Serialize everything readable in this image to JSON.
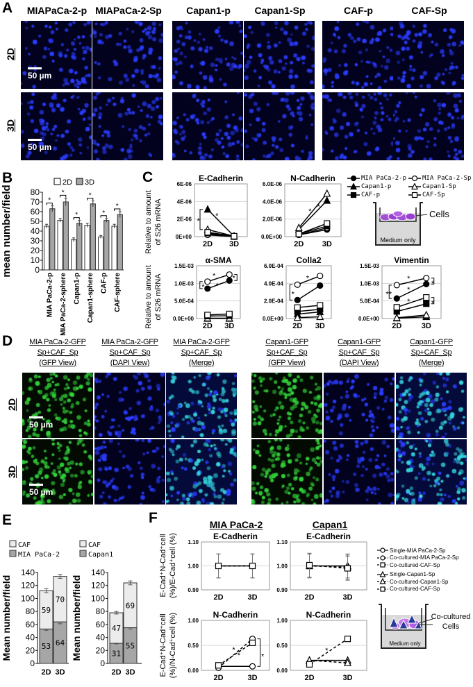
{
  "panels": {
    "A": "A",
    "B": "B",
    "C": "C",
    "D": "D",
    "E": "E",
    "F": "F"
  },
  "colors": {
    "dapi_dot": "#2a3cff",
    "dapi_bg": "#02021e",
    "gfp_dot": "#33d23a",
    "gfp_bg": "#020a02",
    "merge_dot": "#35d7e0",
    "merge_bg": "#040a3a",
    "bar_2d": "#ffffff",
    "bar_3d": "#a6a6a6",
    "stack_bottom": "#a6a6a6",
    "stack_top": "#ececec",
    "cell_purple": "#9b3fd0",
    "cell_blue": "#2a3a9a"
  },
  "panel_a": {
    "headers": [
      "MIAPaCa-2-p",
      "MIAPaCa-2-Sp",
      "Capan1-p",
      "Capan1-Sp",
      "CAF-p",
      "CAF-Sp"
    ],
    "rows": [
      "2D",
      "3D"
    ],
    "scale_bar": "50 µm",
    "stain": "dapi"
  },
  "panel_d": {
    "headers": [
      [
        "MIA PaCa-2-GFP",
        "Sp+CAF_Sp",
        "(GFP View)"
      ],
      [
        "MIA PaCa-2-GFP",
        "Sp+CAF_Sp",
        "(DAPI View)"
      ],
      [
        "MIA PaCa-2-GFP",
        "Sp+CAF_Sp",
        "(Merge)"
      ],
      [
        "Capan1-GFP",
        "Sp+CAF_Sp",
        "(GFP View)"
      ],
      [
        "Capan1-GFP",
        "Sp+CAF_Sp",
        "(DAPI View)"
      ],
      [
        "Capan1-GFP",
        "Sp+CAF_Sp",
        "(Merge)"
      ]
    ],
    "stains": [
      "gfp",
      "dapi",
      "merge",
      "gfp",
      "dapi",
      "merge"
    ],
    "rows": [
      "2D",
      "3D"
    ],
    "scale_bar": "50 µm"
  },
  "c_ylabel": [
    "Relative to amount",
    "of S26 mRNA"
  ],
  "c_legend": [
    {
      "label": "MIA PaCa-2-p",
      "marker": "circle",
      "filled": true
    },
    {
      "label": "MIA PaCa-2-Sp",
      "marker": "circle",
      "filled": false
    },
    {
      "label": "Capan1-p",
      "marker": "triangle",
      "filled": true
    },
    {
      "label": "Capan1-Sp",
      "marker": "triangle",
      "filled": false
    },
    {
      "label": "CAF-p",
      "marker": "square",
      "filled": true
    },
    {
      "label": "CAF-Sp",
      "marker": "square",
      "filled": false
    }
  ],
  "c_diagram": {
    "cells": "Cells",
    "medium": "Medium only"
  },
  "f_titles": [
    "MIA PaCa-2",
    "Capan1"
  ],
  "f_ylabels": [
    [
      "E-Cad⁺N-Cad⁺cell",
      "(%)/E-Cad⁺cell (%)"
    ],
    [
      "E-Cad⁺N-Cad⁺cell",
      "(%)/N-Cad⁺cell (%)"
    ]
  ],
  "f_legend": [
    {
      "label": "Single-MIA PaCa-2-Sp",
      "marker": "circle",
      "dashed": false
    },
    {
      "label": "Co-cultured-MIA PaCa-2-Sp",
      "marker": "circle",
      "dashed": true
    },
    {
      "label": "Co-cultured-CAF-Sp",
      "marker": "square",
      "dashed": true
    },
    {
      "label": "Single-Capan1-Sp",
      "marker": "triangle",
      "dashed": false
    },
    {
      "label": "Co-cultured-Capan1-Sp",
      "marker": "triangle",
      "dashed": true
    },
    {
      "label": "Co-cultured-CAF-Sp",
      "marker": "square",
      "dashed": true
    }
  ],
  "f_diagram": {
    "cells": "Co-cultured Cells",
    "medium": "Medium only"
  },
  "chart_data": [
    {
      "id": "B",
      "type": "bar",
      "categories": [
        "MIA PaCa-2-p",
        "MIA PaCa-2-sphere",
        "Capan1-p",
        "Capan1-sphere",
        "CAF-p",
        "CAF-sphere"
      ],
      "series": [
        {
          "name": "2D",
          "values": [
            45,
            51,
            31,
            46,
            34,
            45
          ],
          "err": [
            2,
            2,
            2,
            2,
            1.5,
            2
          ]
        },
        {
          "name": "3D",
          "values": [
            63,
            70,
            48,
            68,
            51,
            57
          ],
          "err": [
            3,
            4,
            3,
            3,
            2,
            3
          ]
        }
      ],
      "significance": [
        "*",
        "*",
        "*",
        "*",
        "*",
        "*"
      ],
      "ylabel": "mean number/field",
      "ylim": [
        0,
        80
      ],
      "yticks": [
        0,
        10,
        20,
        30,
        40,
        50,
        60,
        70,
        80
      ],
      "legend": "top"
    },
    {
      "id": "C1",
      "type": "line",
      "title": "E-Cadherin",
      "xticks": [
        "2D",
        "3D"
      ],
      "ylim": [
        0,
        6e-06
      ],
      "ytick_labels": [
        "0E+00",
        "2E-06",
        "4E-06",
        "6E-06"
      ],
      "series": [
        {
          "name": "MIA PaCa-2-p",
          "marker": "circle",
          "filled": true,
          "values": [
            3e-07,
            0
          ]
        },
        {
          "name": "MIA PaCa-2-Sp",
          "marker": "circle",
          "filled": false,
          "values": [
            2e-07,
            0
          ]
        },
        {
          "name": "Capan1-p",
          "marker": "triangle",
          "filled": true,
          "values": [
            3.1e-06,
            5e-08
          ]
        },
        {
          "name": "Capan1-Sp",
          "marker": "triangle",
          "filled": false,
          "values": [
            8e-07,
            5e-08
          ]
        },
        {
          "name": "CAF-p",
          "marker": "square",
          "filled": true,
          "values": [
            4e-07,
            0
          ]
        },
        {
          "name": "CAF-Sp",
          "marker": "square",
          "filled": false,
          "values": [
            5e-07,
            5e-08
          ]
        }
      ],
      "annotations": [
        {
          "text": "*",
          "x": -0.35,
          "y": 1.9e-06
        },
        {
          "text": "*",
          "x": 0.35,
          "y": 2.5e-06
        }
      ],
      "brackets": [
        {
          "at": 0,
          "from": 8e-07,
          "to": 3.1e-06
        }
      ]
    },
    {
      "id": "C2",
      "type": "line",
      "title": "N-Cadherin",
      "xticks": [
        "2D",
        "3D"
      ],
      "ylim": [
        0,
        6e-06
      ],
      "ytick_labels": [
        "0.0E+00",
        "2.0E-06",
        "4.0E-06",
        "6.0E-06"
      ],
      "series": [
        {
          "name": "MIA PaCa-2-p",
          "marker": "circle",
          "filled": true,
          "values": [
            2e-07,
            8e-07
          ]
        },
        {
          "name": "MIA PaCa-2-Sp",
          "marker": "circle",
          "filled": false,
          "values": [
            2e-07,
            1e-06
          ]
        },
        {
          "name": "Capan1-p",
          "marker": "triangle",
          "filled": true,
          "values": [
            8e-07,
            4.1e-06
          ]
        },
        {
          "name": "Capan1-Sp",
          "marker": "triangle",
          "filled": false,
          "values": [
            1e-06,
            4.9e-06
          ]
        },
        {
          "name": "CAF-p",
          "marker": "square",
          "filled": true,
          "values": [
            3e-07,
            1.2e-06
          ]
        },
        {
          "name": "CAF-Sp",
          "marker": "square",
          "filled": false,
          "values": [
            3e-07,
            1.5e-06
          ]
        }
      ],
      "annotations": [
        {
          "text": "*",
          "x": 0.4,
          "y": 3e-06
        },
        {
          "text": "*",
          "x": 0.7,
          "y": 3.5e-06
        }
      ],
      "brackets": []
    },
    {
      "id": "C3",
      "type": "line",
      "title": "α-SMA",
      "xticks": [
        "2D",
        "3D"
      ],
      "ylim": [
        0,
        0.0015
      ],
      "ytick_labels": [
        "0.0E+00",
        "5.0E-04",
        "1.0E-03",
        "1.5E-03"
      ],
      "series": [
        {
          "name": "MIA PaCa-2-p",
          "marker": "circle",
          "filled": true,
          "values": [
            0.00085,
            0.00108
          ]
        },
        {
          "name": "MIA PaCa-2-Sp",
          "marker": "circle",
          "filled": false,
          "values": [
            0.00105,
            0.00125
          ]
        },
        {
          "name": "Capan1-p",
          "marker": "triangle",
          "filled": true,
          "values": [
            0,
            0
          ]
        },
        {
          "name": "Capan1-Sp",
          "marker": "triangle",
          "filled": false,
          "values": [
            1e-05,
            1e-05
          ]
        },
        {
          "name": "CAF-p",
          "marker": "square",
          "filled": true,
          "values": [
            7e-05,
            8e-05
          ]
        },
        {
          "name": "CAF-Sp",
          "marker": "square",
          "filled": false,
          "values": [
            0.0001,
            0.00013
          ]
        }
      ],
      "annotations": [
        {
          "text": "*",
          "x": 0.3,
          "y": 0.00124
        },
        {
          "text": "*",
          "x": 0.45,
          "y": 0.00096
        },
        {
          "text": "*",
          "x": -0.2,
          "y": 0.00093
        },
        {
          "text": "*",
          "x": 1.2,
          "y": 0.00117
        }
      ],
      "brackets": [
        {
          "at": 0,
          "from": 0.00085,
          "to": 0.00105
        },
        {
          "at": 1,
          "from": 0.00108,
          "to": 0.00125
        }
      ]
    },
    {
      "id": "C4",
      "type": "line",
      "title": "Colla2",
      "xticks": [
        "2D",
        "3D"
      ],
      "ylim": [
        0,
        0.0006
      ],
      "ytick_labels": [
        "0.0E+00",
        "2.0E-04",
        "4.0E-04",
        "6.0E-04"
      ],
      "series": [
        {
          "name": "MIA PaCa-2-p",
          "marker": "circle",
          "filled": true,
          "values": [
            0.00021,
            0.000375
          ]
        },
        {
          "name": "MIA PaCa-2-Sp",
          "marker": "circle",
          "filled": false,
          "values": [
            0.000385,
            0.000485
          ]
        },
        {
          "name": "Capan1-p",
          "marker": "triangle",
          "filled": true,
          "values": [
            5e-05,
            7.5e-05
          ]
        },
        {
          "name": "Capan1-Sp",
          "marker": "triangle",
          "filled": false,
          "values": [
            1e-05,
            2e-05
          ]
        },
        {
          "name": "CAF-p",
          "marker": "square",
          "filled": true,
          "values": [
            8e-05,
            0.000105
          ]
        },
        {
          "name": "CAF-Sp",
          "marker": "square",
          "filled": false,
          "values": [
            0.000125,
            0.00015
          ]
        }
      ],
      "annotations": [
        {
          "text": "*",
          "x": 0.45,
          "y": 0.00047
        },
        {
          "text": "*",
          "x": -0.2,
          "y": 0.00029
        }
      ],
      "brackets": [
        {
          "at": 0,
          "from": 0.00021,
          "to": 0.000385
        }
      ]
    },
    {
      "id": "C5",
      "type": "line",
      "title": "Vimentin",
      "xticks": [
        "2D",
        "3D"
      ],
      "ylim": [
        0,
        0.0015
      ],
      "ytick_labels": [
        "0.0E+00",
        "5.0E-04",
        "1.0E-03",
        "1.5E-03"
      ],
      "series": [
        {
          "name": "MIA PaCa-2-p",
          "marker": "circle",
          "filled": true,
          "values": [
            0.00057,
            0.00098
          ]
        },
        {
          "name": "MIA PaCa-2-Sp",
          "marker": "circle",
          "filled": false,
          "values": [
            0.00095,
            0.00115
          ]
        },
        {
          "name": "Capan1-p",
          "marker": "triangle",
          "filled": true,
          "values": [
            1e-05,
            5e-05
          ]
        },
        {
          "name": "Capan1-Sp",
          "marker": "triangle",
          "filled": false,
          "values": [
            2e-05,
            0.0001
          ]
        },
        {
          "name": "CAF-p",
          "marker": "square",
          "filled": true,
          "values": [
            0.0002,
            0.00042
          ]
        },
        {
          "name": "CAF-Sp",
          "marker": "square",
          "filled": false,
          "values": [
            0.00032,
            0.0006
          ]
        }
      ],
      "annotations": [
        {
          "text": "*",
          "x": 0.4,
          "y": 0.00116
        },
        {
          "text": "*",
          "x": 0.4,
          "y": 0.00085
        },
        {
          "text": "*",
          "x": 0.4,
          "y": 0.00051
        },
        {
          "text": "**",
          "x": -0.27,
          "y": 0.00072
        },
        {
          "text": "*",
          "x": 1.22,
          "y": 0.00103
        },
        {
          "text": "*",
          "x": 1.22,
          "y": 0.00046
        }
      ],
      "brackets": [
        {
          "at": 0,
          "from": 0.00057,
          "to": 0.00095
        },
        {
          "at": 1,
          "from": 0.00098,
          "to": 0.00115
        },
        {
          "at": 1,
          "from": 0.00042,
          "to": 0.0006
        }
      ]
    },
    {
      "id": "E1",
      "type": "stacked-bar",
      "categories": [
        "2D",
        "3D"
      ],
      "ylabel": "Mean number/field",
      "ylim": [
        0,
        140
      ],
      "yticks": [
        0,
        20,
        40,
        60,
        80,
        100,
        120,
        140
      ],
      "series": [
        {
          "name": "MIA PaCa-2",
          "values": [
            53,
            64
          ],
          "err": [
            2,
            3
          ]
        },
        {
          "name": "CAF",
          "values": [
            59,
            70
          ],
          "err": [
            3,
            3
          ]
        }
      ],
      "legend": "top"
    },
    {
      "id": "E2",
      "type": "stacked-bar",
      "categories": [
        "2D",
        "3D"
      ],
      "ylabel": "Mean number/field",
      "ylim": [
        0,
        140
      ],
      "yticks": [
        0,
        20,
        40,
        60,
        80,
        100,
        120,
        140
      ],
      "series": [
        {
          "name": "Capan1",
          "values": [
            31,
            55
          ],
          "err": [
            1,
            2
          ]
        },
        {
          "name": "CAF",
          "values": [
            47,
            69
          ],
          "err": [
            2,
            3
          ]
        }
      ],
      "legend": "top"
    },
    {
      "id": "F1",
      "type": "line",
      "title": "E-Cadherin",
      "xticks": [
        "2D",
        "3D"
      ],
      "ylim": [
        0.9,
        1.1
      ],
      "ytick_labels": [
        "0.90",
        "1.00",
        "1.10"
      ],
      "series": [
        {
          "name": "Single-MIA PaCa-2-Sp",
          "marker": "circle",
          "filled": false,
          "dashed": false,
          "values": [
            1.0,
            1.0
          ],
          "err": [
            0.05,
            0.05
          ]
        },
        {
          "name": "Co-cultured-MIA PaCa-2-Sp",
          "marker": "circle",
          "filled": false,
          "dashed": true,
          "values": [
            1.0,
            1.0
          ],
          "err": [
            0.05,
            0.05
          ]
        },
        {
          "name": "Co-cultured-CAF-Sp",
          "marker": "square",
          "filled": false,
          "dashed": true,
          "values": [
            1.0,
            1.0
          ],
          "err": [
            0.05,
            0.05
          ]
        }
      ],
      "annotations": [],
      "brackets": []
    },
    {
      "id": "F2",
      "type": "line",
      "title": "E-Cadherin",
      "xticks": [
        "2D",
        "3D"
      ],
      "ylim": [
        0.9,
        1.1
      ],
      "ytick_labels": [
        "0.90",
        "1.00",
        "1.10"
      ],
      "series": [
        {
          "name": "Single-Capan1-Sp",
          "marker": "triangle",
          "filled": false,
          "dashed": false,
          "values": [
            1.0,
            1.0
          ],
          "err": [
            0.05,
            0.05
          ]
        },
        {
          "name": "Co-cultured-Capan1-Sp",
          "marker": "triangle",
          "filled": false,
          "dashed": true,
          "values": [
            1.0,
            0.995
          ],
          "err": [
            0.05,
            0.05
          ]
        },
        {
          "name": "Co-cultured-CAF-Sp",
          "marker": "square",
          "filled": false,
          "dashed": true,
          "values": [
            1.003,
            0.99
          ],
          "err": [
            0.05,
            0.05
          ]
        }
      ],
      "annotations": [],
      "brackets": []
    },
    {
      "id": "F3",
      "type": "line",
      "title": "N-Cadherin",
      "xticks": [
        "2D",
        "3D"
      ],
      "ylim": [
        0,
        1
      ],
      "ytick_labels": [
        "0.00",
        "0.50",
        "1.00"
      ],
      "series": [
        {
          "name": "Single-MIA PaCa-2-Sp",
          "marker": "circle",
          "filled": false,
          "dashed": false,
          "values": [
            0.08,
            0.08
          ]
        },
        {
          "name": "Co-cultured-MIA PaCa-2-Sp",
          "marker": "circle",
          "filled": false,
          "dashed": true,
          "values": [
            0.05,
            0.63
          ]
        },
        {
          "name": "Co-cultured-CAF-Sp",
          "marker": "square",
          "filled": false,
          "dashed": true,
          "values": [
            0.1,
            0.55
          ]
        }
      ],
      "annotations": [
        {
          "text": "*",
          "x": 0.45,
          "y": 0.43
        },
        {
          "text": "*",
          "x": 0.6,
          "y": 0.32
        },
        {
          "text": "*",
          "x": 1.3,
          "y": 0.3
        }
      ],
      "brackets": [
        {
          "at": 1,
          "from": 0.08,
          "to": 0.63
        }
      ]
    },
    {
      "id": "F4",
      "type": "line",
      "title": "N-Cadherin",
      "xticks": [
        "2D",
        "3D"
      ],
      "ylim": [
        0,
        1
      ],
      "ytick_labels": [
        "0.00",
        "0.50",
        "1.00"
      ],
      "series": [
        {
          "name": "Single-Capan1-Sp",
          "marker": "triangle",
          "filled": false,
          "dashed": false,
          "values": [
            0.2,
            0.2
          ]
        },
        {
          "name": "Co-cultured-Capan1-Sp",
          "marker": "triangle",
          "filled": false,
          "dashed": true,
          "values": [
            0.2,
            0.15
          ]
        },
        {
          "name": "Co-cultured-CAF-Sp",
          "marker": "square",
          "filled": false,
          "dashed": true,
          "values": [
            0.12,
            0.63
          ]
        }
      ],
      "annotations": [
        {
          "text": "*",
          "x": 0.45,
          "y": 0.42
        }
      ],
      "brackets": []
    }
  ]
}
